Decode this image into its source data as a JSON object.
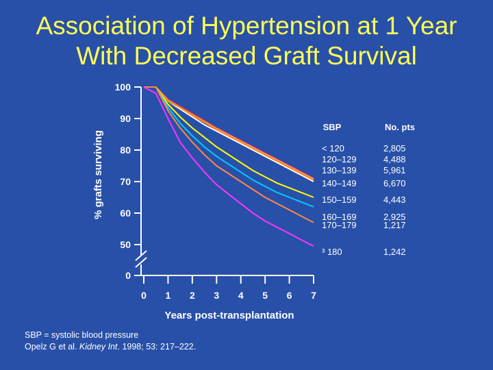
{
  "title": {
    "line1": "Association of Hypertension at 1 Year",
    "line2": "With Decreased Graft Survival"
  },
  "colors": {
    "background": "#2850a8",
    "title": "#ffff55",
    "axis": "#ffffff"
  },
  "chart_data": {
    "type": "line",
    "title": "Association of Hypertension at 1 Year With Decreased Graft Survival",
    "xlabel": "Years post-transplantation",
    "ylabel": "% grafts surviving",
    "xlim": [
      0,
      7
    ],
    "ylim": [
      50,
      100
    ],
    "axis_break": true,
    "y_ticks": [
      "0",
      "50",
      "60",
      "70",
      "80",
      "90",
      "100"
    ],
    "x_ticks": [
      "0",
      "1",
      "2",
      "3",
      "4",
      "5",
      "6",
      "7"
    ],
    "x": [
      0,
      0.5,
      1,
      1.5,
      2,
      2.5,
      3,
      3.5,
      4,
      4.5,
      5,
      5.5,
      6,
      6.5,
      7
    ],
    "series": [
      {
        "name": "< 120",
        "n": "2,805",
        "color": "#ffffff",
        "values": [
          100,
          100,
          95.5,
          93,
          90.5,
          88,
          86,
          84,
          82,
          80,
          78,
          76,
          74,
          72,
          70
        ]
      },
      {
        "name": "120–129",
        "n": "4,488",
        "color": "#ff3333",
        "values": [
          100,
          100,
          96,
          93.8,
          91.5,
          89.3,
          87,
          85,
          83,
          81,
          79,
          77,
          75,
          73,
          71
        ]
      },
      {
        "name": "130–139",
        "n": "5,961",
        "color": "#ff9999",
        "values": [
          100,
          100,
          95.8,
          93.5,
          91.2,
          89,
          86.8,
          84.8,
          82.8,
          80.8,
          78.8,
          76.8,
          74.8,
          72.8,
          70.8
        ]
      },
      {
        "name": "140–149",
        "n": "6,670",
        "color": "#ff8800",
        "values": [
          100,
          100,
          95.5,
          93.5,
          91,
          88.8,
          86.5,
          84.5,
          82.5,
          80.5,
          78.5,
          76.5,
          74.5,
          72.5,
          70.5
        ]
      },
      {
        "name": "150–159",
        "n": "4,443",
        "color": "#ffff00",
        "values": [
          100,
          100,
          94.5,
          90.5,
          87,
          84,
          81,
          78.5,
          76,
          73.5,
          71.5,
          69.5,
          68,
          66.5,
          65
        ]
      },
      {
        "name": "160–169",
        "n": "2,925",
        "color": "#00ccff",
        "values": [
          100,
          100,
          93.5,
          88.5,
          84.5,
          81,
          78,
          75.5,
          73,
          70.5,
          68.5,
          66.5,
          65,
          63.5,
          62
        ]
      },
      {
        "name": "170–179",
        "n": "1,217",
        "color": "#ff8844",
        "values": [
          100,
          100,
          92.5,
          87,
          82.5,
          78.5,
          75,
          72.5,
          70,
          67.5,
          65,
          63,
          61,
          59,
          57
        ]
      },
      {
        "name": "³ 180",
        "n": "1,242",
        "color": "#ff33ff",
        "values": [
          100,
          98,
          90,
          82.5,
          77.5,
          73,
          69,
          66,
          63,
          60,
          57.5,
          55.5,
          53.5,
          51.5,
          49.5
        ]
      }
    ],
    "legend": {
      "header_sbp": "SBP",
      "header_pts": "No. pts",
      "position": "right"
    }
  },
  "footnotes": {
    "line1": "SBP = systolic blood pressure",
    "line2_prefix": "Opelz G et al. ",
    "line2_journal": "Kidney Int",
    "line2_suffix": ". 1998; 53: 217–222."
  }
}
